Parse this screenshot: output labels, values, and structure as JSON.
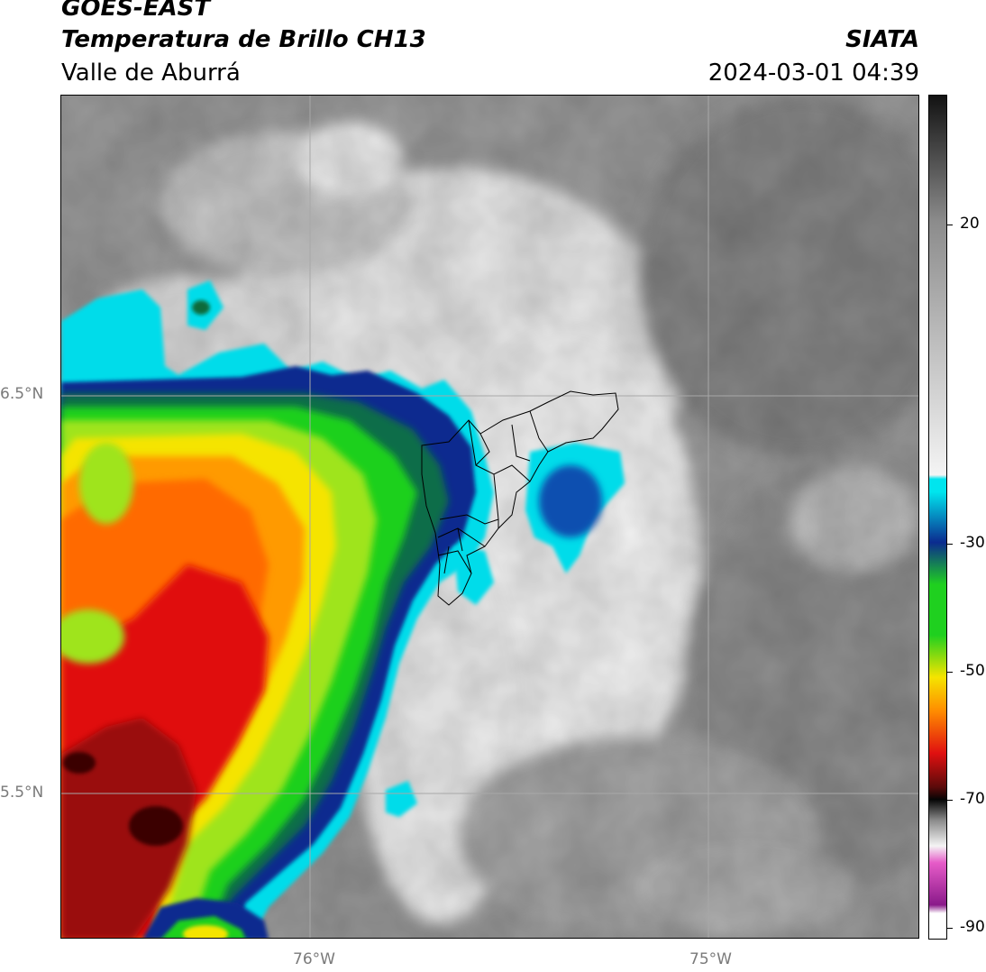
{
  "header": {
    "satellite": "GOES-EAST",
    "product": "Temperatura de Brillo CH13",
    "organization": "SIATA",
    "region": "Valle de Aburrá",
    "timestamp": "2024-03-01 04:39"
  },
  "map": {
    "lat_labels": [
      "6.5°N",
      "5.5°N"
    ],
    "lon_labels": [
      "76°W",
      "75°W"
    ],
    "gridline_color": "#a8a8a8",
    "boundary_color": "#000000"
  },
  "colorbar": {
    "tick_labels": [
      "20",
      "-30",
      "-50",
      "-70",
      "-90"
    ],
    "colors": {
      "warm": "#121212",
      "mid_gray": "#8c8c8c",
      "light": "#f4f4f4",
      "cyan": "#00e5ee",
      "blue": "#0b2b8f",
      "green": "#1fd01f",
      "yellow": "#f5e400",
      "orange": "#ff8c00",
      "red": "#e01010",
      "dark_red": "#5c0a0a",
      "black": "#050505",
      "pink": "#e65bc8",
      "purple": "#8a1a8a"
    }
  }
}
